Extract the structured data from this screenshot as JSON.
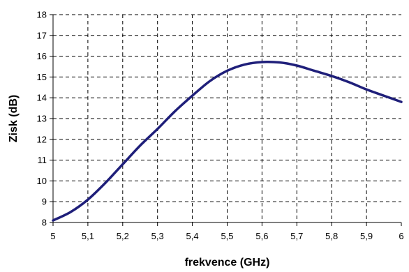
{
  "chart_data": {
    "type": "line",
    "xlabel": "frekvence (GHz)",
    "ylabel": "Zisk  (dB)",
    "xlim": [
      5,
      6
    ],
    "ylim": [
      8,
      18
    ],
    "x_ticks": [
      "5",
      "5,1",
      "5,2",
      "5,3",
      "5,4",
      "5,5",
      "5,6",
      "5,7",
      "5,8",
      "5,9",
      "6"
    ],
    "y_ticks": [
      "8",
      "9",
      "10",
      "11",
      "12",
      "13",
      "14",
      "15",
      "16",
      "17",
      "18"
    ],
    "grid": true,
    "series": [
      {
        "color": "#1f1f7a",
        "x": [
          5.0,
          5.05,
          5.1,
          5.15,
          5.2,
          5.25,
          5.3,
          5.35,
          5.4,
          5.45,
          5.5,
          5.55,
          5.6,
          5.65,
          5.7,
          5.75,
          5.8,
          5.85,
          5.9,
          5.95,
          6.0
        ],
        "y": [
          8.1,
          8.5,
          9.1,
          9.9,
          10.8,
          11.7,
          12.5,
          13.35,
          14.1,
          14.8,
          15.3,
          15.6,
          15.72,
          15.7,
          15.55,
          15.3,
          15.05,
          14.75,
          14.4,
          14.1,
          13.8
        ]
      }
    ]
  }
}
